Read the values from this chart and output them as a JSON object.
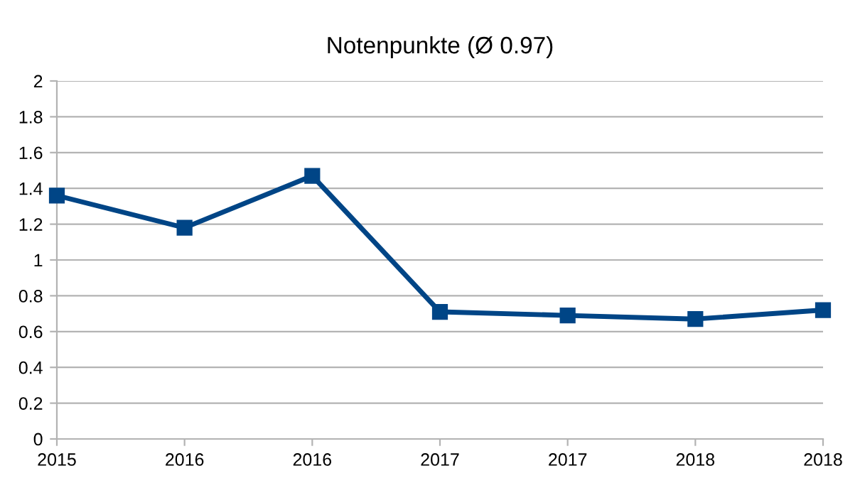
{
  "chart_data": {
    "type": "line",
    "title": "Notenpunkte (Ø 0.97)",
    "categories": [
      "2015",
      "2016",
      "2016",
      "2017",
      "2017",
      "2018",
      "2018"
    ],
    "series": [
      {
        "color": "#004586",
        "values": [
          1.36,
          1.18,
          1.47,
          0.71,
          0.69,
          0.67,
          0.72
        ]
      }
    ],
    "ylim": [
      0,
      2
    ],
    "yticks": [
      0,
      0.2,
      0.4,
      0.6,
      0.8,
      1,
      1.2,
      1.4,
      1.6,
      1.8,
      2
    ],
    "grid": "y",
    "marker": "square",
    "line_style": "solid",
    "legend": false
  }
}
